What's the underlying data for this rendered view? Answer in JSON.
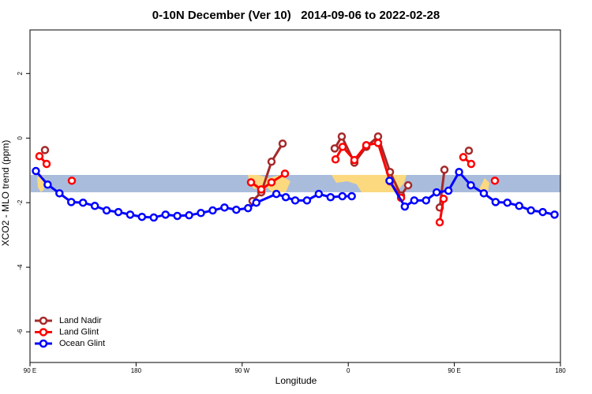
{
  "chart_data": {
    "type": "line",
    "title": "0-10N December (Ver 10)   2014-09-06 to 2022-02-28",
    "xlabel": "Longitude",
    "ylabel": "XCO2 - MLO trend (ppm)",
    "xlim": [
      90,
      540
    ],
    "ylim": [
      -6.95,
      3.35
    ],
    "xticks": [
      {
        "value": 90,
        "label": "90 E"
      },
      180,
      {
        "value": 270,
        "label": "90 W"
      },
      {
        "value": 360,
        "label": "0"
      },
      {
        "value": 450,
        "label": "90 E"
      },
      {
        "value": 540,
        "label": "180"
      }
    ],
    "yticks": [
      2,
      0,
      -2,
      -4,
      -6
    ],
    "legend": "bottom-left",
    "series": [
      {
        "name": "Land Nadir",
        "color": "#a52a2a",
        "x": [
          102.7,
          200,
          278.8,
          286.2,
          294.9,
          304.3,
          330,
          348.5,
          354.5,
          365.2,
          375.3,
          385.3,
          395.4,
          404.8,
          410.8,
          420,
          437.6,
          441.6,
          450,
          462.3
        ],
        "values": [
          -0.37,
          null,
          -1.95,
          -1.68,
          -0.73,
          -0.17,
          null,
          -0.32,
          0.05,
          -0.76,
          -0.27,
          0.05,
          -1.05,
          -1.78,
          -1.46,
          null,
          -2.15,
          -0.98,
          null,
          -0.39
        ]
      },
      {
        "name": "Land Glint",
        "color": "#ff0000",
        "x": [
          98.0,
          104.1,
          115,
          125.5,
          200,
          277.5,
          286.2,
          294.9,
          306.3,
          330,
          349.2,
          355.2,
          365.2,
          375.3,
          385.3,
          395.4,
          404.8,
          420,
          437.6,
          440.9,
          450,
          457.6,
          464.3,
          475,
          484.4
        ],
        "values": [
          -0.56,
          -0.8,
          null,
          -1.32,
          null,
          -1.37,
          -1.59,
          -1.37,
          -1.1,
          null,
          -0.66,
          -0.27,
          -0.68,
          -0.22,
          -0.15,
          -1.34,
          -1.85,
          null,
          -2.61,
          -1.88,
          null,
          -0.59,
          -0.8,
          null,
          -1.32
        ]
      },
      {
        "name": "Ocean Glint",
        "color": "#0000ff",
        "x": [
          95,
          105,
          115,
          125,
          135,
          145,
          155,
          165,
          175,
          185,
          195,
          205,
          215,
          225,
          235,
          245,
          255,
          265,
          275,
          282,
          299,
          307,
          315,
          325,
          335,
          345,
          355,
          363,
          380,
          395,
          408,
          416,
          426,
          435,
          445,
          454,
          464,
          475,
          485,
          495,
          505,
          515,
          525,
          535
        ],
        "values": [
          -1.02,
          -1.44,
          -1.71,
          -1.98,
          -2.0,
          -2.1,
          -2.24,
          -2.29,
          -2.37,
          -2.44,
          -2.46,
          -2.37,
          -2.41,
          -2.39,
          -2.32,
          -2.24,
          -2.15,
          -2.22,
          -2.17,
          -2.0,
          -1.73,
          -1.83,
          -1.93,
          -1.93,
          -1.73,
          -1.83,
          -1.8,
          -1.8,
          null,
          -1.32,
          -2.12,
          -1.93,
          -1.93,
          -1.68,
          -1.63,
          -1.05,
          -1.46,
          -1.71,
          -1.98,
          -2.0,
          -2.1,
          -2.24,
          -2.29,
          -2.37
        ]
      }
    ]
  }
}
